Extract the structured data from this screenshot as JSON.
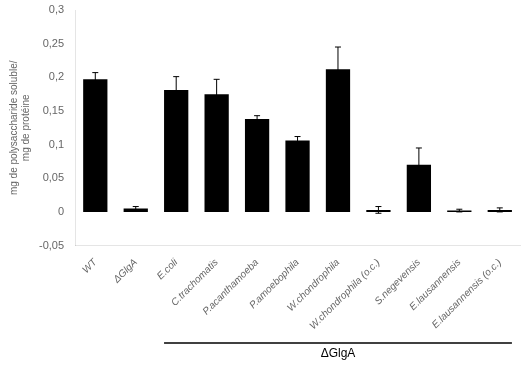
{
  "chart_data": {
    "type": "bar",
    "categories": [
      "WT",
      "ΔGlgA",
      "E.coli",
      "C.trachomatis",
      "P.acanthamoeba",
      "P.amoebophila",
      "W.chondrophila",
      "W.chondrophila (o.c.)",
      "S.negevensis",
      "E.lausannensis",
      "E.lausannensis (o.c.)"
    ],
    "values": [
      0.197,
      0.005,
      0.181,
      0.175,
      0.138,
      0.106,
      0.212,
      0.003,
      0.07,
      0.002,
      0.003
    ],
    "errors": [
      0.01,
      0.003,
      0.02,
      0.022,
      0.005,
      0.006,
      0.033,
      0.005,
      0.025,
      0.002,
      0.003
    ],
    "color": "#000000",
    "ylabel": "mg de polysaccharide soluble/\nmg de protéine",
    "ylim": [
      -0.05,
      0.3
    ],
    "yticks": [
      {
        "value": -0.05,
        "label": "-0,05"
      },
      0,
      {
        "value": 0.05,
        "label": "0,05"
      },
      {
        "value": 0.1,
        "label": "0,1"
      },
      {
        "value": 0.15,
        "label": "0,15"
      },
      {
        "value": 0.2,
        "label": "0,2"
      },
      {
        "value": 0.25,
        "label": "0,25"
      },
      {
        "value": 0.3,
        "label": "0,3"
      }
    ],
    "grid": false,
    "annotations": [
      {
        "text": "ΔGlgA",
        "start": "E.coli",
        "end": "E.lausannensis (o.c.)"
      }
    ]
  }
}
